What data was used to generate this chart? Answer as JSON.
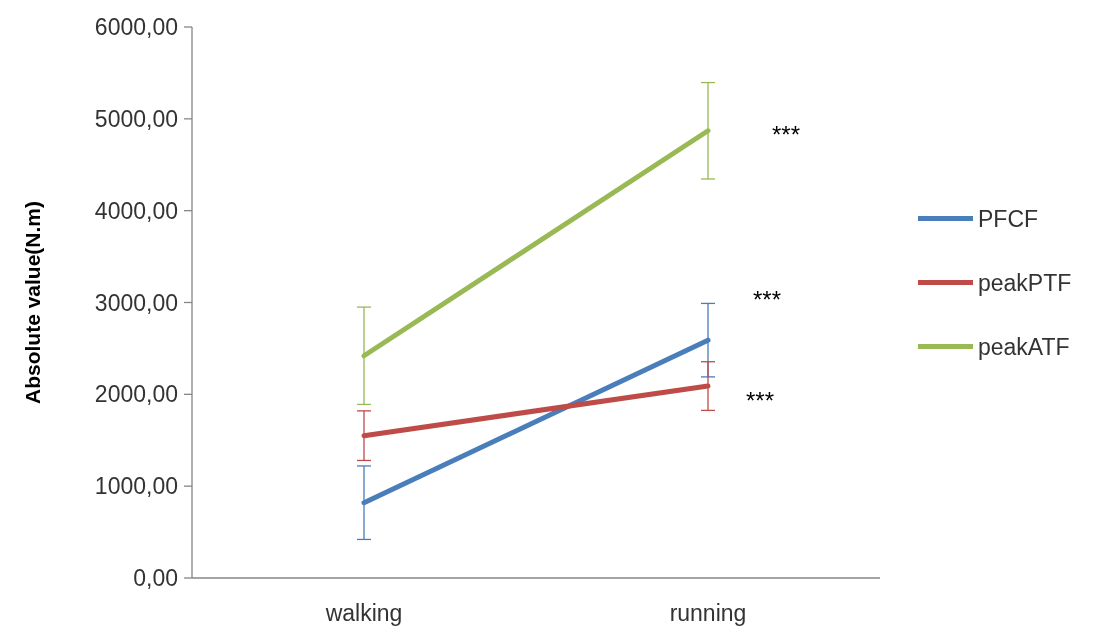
{
  "chart_data": {
    "type": "line",
    "ylabel": "Absolute value(N.m)",
    "categories": [
      "walking",
      "running"
    ],
    "series": [
      {
        "name": "PFCF",
        "color": "#4a7ebb",
        "values": [
          820,
          2590
        ],
        "errors": [
          400,
          400
        ]
      },
      {
        "name": "peakPTF",
        "color": "#be4b48",
        "values": [
          1550,
          2090
        ],
        "errors": [
          270,
          265
        ]
      },
      {
        "name": "peakATF",
        "color": "#98b954",
        "values": [
          2420,
          4870
        ],
        "errors": [
          530,
          525
        ]
      }
    ],
    "ylim": [
      0,
      6000
    ],
    "yticks": [
      {
        "value": 0,
        "label": "0,00"
      },
      {
        "value": 1000,
        "label": "1000,00"
      },
      {
        "value": 2000,
        "label": "2000,00"
      },
      {
        "value": 3000,
        "label": "3000,00"
      },
      {
        "value": 4000,
        "label": "4000,00"
      },
      {
        "value": 5000,
        "label": "5000,00"
      },
      {
        "value": 6000,
        "label": "6000,00"
      }
    ],
    "annotations": [
      "***",
      "***",
      "***"
    ],
    "legend": "right",
    "marker": "none",
    "line_style": "solid",
    "grid": false
  }
}
